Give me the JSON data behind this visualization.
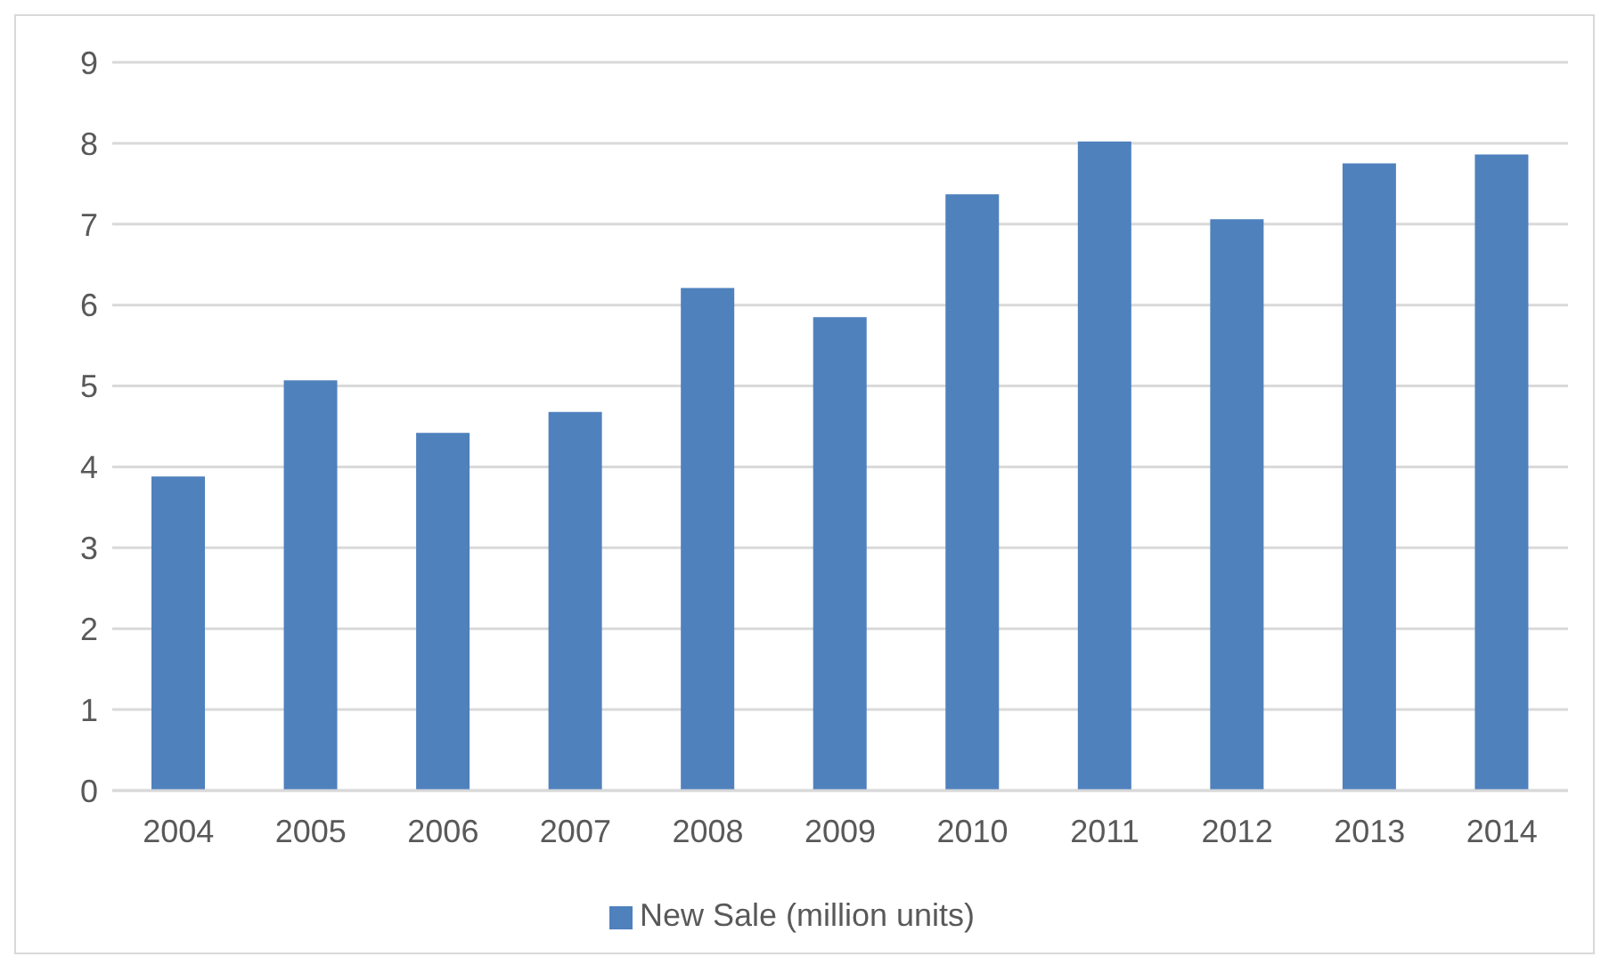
{
  "chart_data": {
    "type": "bar",
    "categories": [
      "2004",
      "2005",
      "2006",
      "2007",
      "2008",
      "2009",
      "2010",
      "2011",
      "2012",
      "2013",
      "2014"
    ],
    "series": [
      {
        "name": "New Sale (million units)",
        "color": "#4f81bd",
        "values": [
          3.88,
          5.07,
          4.42,
          4.68,
          6.21,
          5.85,
          7.37,
          8.02,
          7.06,
          7.75,
          7.86
        ]
      }
    ],
    "ylim": [
      0,
      9
    ],
    "yticks": [
      0,
      1,
      2,
      3,
      4,
      5,
      6,
      7,
      8,
      9
    ],
    "grid": "y",
    "legend": "bottom"
  }
}
